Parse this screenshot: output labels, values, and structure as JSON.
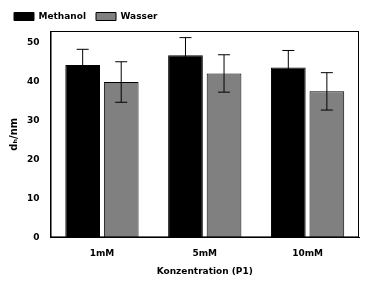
{
  "chart_data": {
    "type": "bar",
    "x_label": "Konzentration (P1)",
    "y_label": "dₕ/nm",
    "categories": [
      "1mM",
      "5mM",
      "10mM"
    ],
    "series": [
      {
        "name": "Methanol",
        "color": "#000000",
        "values": [
          44.3,
          46.8,
          43.6
        ],
        "errors": [
          4.0,
          4.5,
          4.4
        ]
      },
      {
        "name": "Wasser",
        "color": "#808080",
        "values": [
          39.9,
          42.1,
          37.5
        ],
        "errors": [
          5.2,
          4.8,
          4.8
        ]
      }
    ],
    "ylim": [
      0,
      53
    ],
    "yticks": [
      0,
      10,
      20,
      30,
      40,
      50
    ],
    "grid": false,
    "legend": "upper left"
  }
}
